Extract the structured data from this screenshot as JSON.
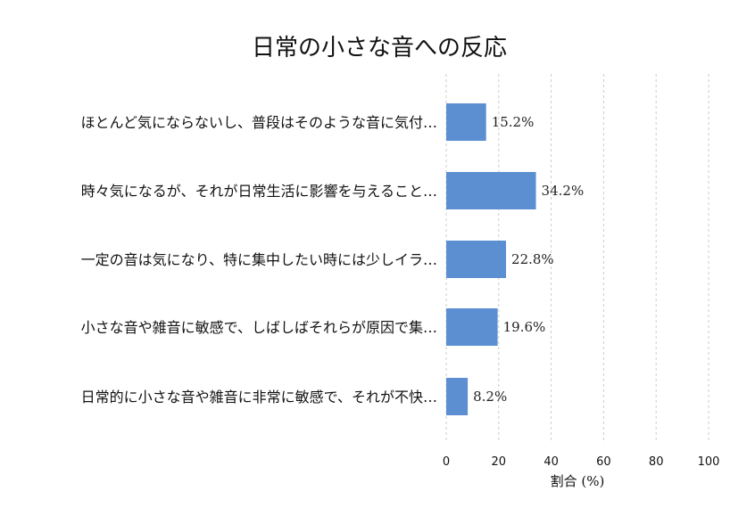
{
  "chart_data": {
    "type": "bar",
    "orientation": "horizontal",
    "title": "日常の小さな音への反応",
    "xlabel": "割合 (%)",
    "ylabel": "",
    "xlim": [
      0,
      100
    ],
    "xticks": [
      "0",
      "20",
      "40",
      "60",
      "80",
      "100"
    ],
    "grid": true,
    "categories": [
      "ほとんど気にならないし、普段はそのような音に気付…",
      "時々気になるが、それが日常生活に影響を与えること…",
      "一定の音は気になり、特に集中したい時には少しイラ…",
      "小さな音や雑音に敏感で、しばしばそれらが原因で集…",
      "日常的に小さな音や雑音に非常に敏感で、それが不快…"
    ],
    "values": [
      15.2,
      34.2,
      22.8,
      19.6,
      8.2
    ],
    "value_labels": [
      "15.2%",
      "34.2%",
      "22.8%",
      "19.6%",
      "8.2%"
    ],
    "bar_color": "#5b8fd1"
  }
}
